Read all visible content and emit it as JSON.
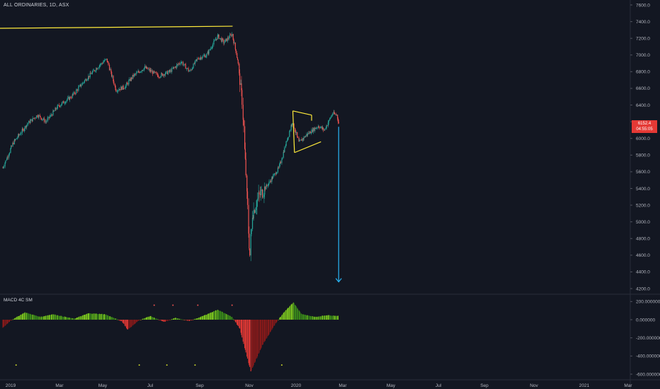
{
  "header": {
    "title": "ALL ORDINARIES, 1D, ASX"
  },
  "indicator": {
    "title": "MACD 4C SM"
  },
  "last_price": {
    "value": "6152.4",
    "countdown": "04:55:05"
  },
  "colors": {
    "background": "#131722",
    "up": "#26a69a",
    "down": "#ef5350",
    "annotation_line": "#ffeb3b",
    "arrow": "#29b6f6",
    "hist_pos": "#7cc81f",
    "hist_pos_dark": "#3a8a1a",
    "hist_neg": "#e53935",
    "hist_neg_dark": "#8b1a1a"
  },
  "chart_data": [
    {
      "type": "candlestick",
      "title": "ALL ORDINARIES, 1D, ASX",
      "y_ticks": [
        "7600.0",
        "7400.0",
        "7200.0",
        "7000.0",
        "6800.0",
        "6600.0",
        "6400.0",
        "6200.0",
        "6000.0",
        "5800.0",
        "5600.0",
        "5400.0",
        "5200.0",
        "5000.0",
        "4800.0",
        "4600.0",
        "4400.0",
        "4200.0"
      ],
      "ylim": [
        4150,
        7650
      ],
      "x_ticks": [
        "2019",
        "Mar",
        "May",
        "Jul",
        "Sep",
        "Nov",
        "2020",
        "Mar",
        "May",
        "Jul",
        "Sep",
        "Nov",
        "2021",
        "Mar"
      ],
      "close_anchors": [
        {
          "date": "2019-01-01",
          "close": 5650
        },
        {
          "date": "2019-01-20",
          "close": 5950
        },
        {
          "date": "2019-02-15",
          "close": 6180
        },
        {
          "date": "2019-03-05",
          "close": 6280
        },
        {
          "date": "2019-03-20",
          "close": 6200
        },
        {
          "date": "2019-04-10",
          "close": 6380
        },
        {
          "date": "2019-05-05",
          "close": 6500
        },
        {
          "date": "2019-05-30",
          "close": 6700
        },
        {
          "date": "2019-06-25",
          "close": 6880
        },
        {
          "date": "2019-07-08",
          "close": 6950
        },
        {
          "date": "2019-07-25",
          "close": 6580
        },
        {
          "date": "2019-08-10",
          "close": 6620
        },
        {
          "date": "2019-08-25",
          "close": 6750
        },
        {
          "date": "2019-09-15",
          "close": 6850
        },
        {
          "date": "2019-10-10",
          "close": 6750
        },
        {
          "date": "2019-10-30",
          "close": 6800
        },
        {
          "date": "2019-11-20",
          "close": 6920
        },
        {
          "date": "2019-12-05",
          "close": 6800
        },
        {
          "date": "2019-12-20",
          "close": 6960
        },
        {
          "date": "2020-01-05",
          "close": 7000
        },
        {
          "date": "2020-01-25",
          "close": 7230
        },
        {
          "date": "2020-02-05",
          "close": 7150
        },
        {
          "date": "2020-02-20",
          "close": 7250
        },
        {
          "date": "2020-03-01",
          "close": 6950
        },
        {
          "date": "2020-03-10",
          "close": 6400
        },
        {
          "date": "2020-03-18",
          "close": 5300
        },
        {
          "date": "2020-03-23",
          "close": 4600
        },
        {
          "date": "2020-03-28",
          "close": 5100
        },
        {
          "date": "2020-04-08",
          "close": 5300
        },
        {
          "date": "2020-04-25",
          "close": 5450
        },
        {
          "date": "2020-05-15",
          "close": 5650
        },
        {
          "date": "2020-06-08",
          "close": 6200
        },
        {
          "date": "2020-06-20",
          "close": 5950
        },
        {
          "date": "2020-07-05",
          "close": 6050
        },
        {
          "date": "2020-07-25",
          "close": 6150
        },
        {
          "date": "2020-08-05",
          "close": 6100
        },
        {
          "date": "2020-08-20",
          "close": 6300
        },
        {
          "date": "2020-08-28",
          "close": 6280
        },
        {
          "date": "2020-09-01",
          "close": 6150
        }
      ]
    },
    {
      "type": "histogram",
      "title": "MACD 4C SM",
      "y_ticks": [
        "200.000000",
        "0.000000",
        "-200.000000",
        "-400.000000",
        "-600.000000"
      ],
      "ylim": [
        -650,
        260
      ],
      "value_anchors": [
        {
          "date": "2019-01-01",
          "value": -90
        },
        {
          "date": "2019-01-15",
          "value": -10
        },
        {
          "date": "2019-02-10",
          "value": 80
        },
        {
          "date": "2019-03-10",
          "value": 30
        },
        {
          "date": "2019-04-01",
          "value": 60
        },
        {
          "date": "2019-05-10",
          "value": 10
        },
        {
          "date": "2019-06-05",
          "value": 70
        },
        {
          "date": "2019-07-05",
          "value": 60
        },
        {
          "date": "2019-08-05",
          "value": -20
        },
        {
          "date": "2019-08-15",
          "value": -110
        },
        {
          "date": "2019-09-05",
          "value": -5
        },
        {
          "date": "2019-09-25",
          "value": 40
        },
        {
          "date": "2019-10-20",
          "value": -25
        },
        {
          "date": "2019-11-10",
          "value": 20
        },
        {
          "date": "2019-12-05",
          "value": -15
        },
        {
          "date": "2019-12-25",
          "value": 30
        },
        {
          "date": "2020-01-25",
          "value": 110
        },
        {
          "date": "2020-02-20",
          "value": 30
        },
        {
          "date": "2020-03-05",
          "value": -100
        },
        {
          "date": "2020-03-25",
          "value": -570
        },
        {
          "date": "2020-04-15",
          "value": -280
        },
        {
          "date": "2020-05-10",
          "value": -30
        },
        {
          "date": "2020-05-25",
          "value": 90
        },
        {
          "date": "2020-06-10",
          "value": 190
        },
        {
          "date": "2020-06-25",
          "value": 60
        },
        {
          "date": "2020-07-20",
          "value": 30
        },
        {
          "date": "2020-08-10",
          "value": 50
        },
        {
          "date": "2020-08-31",
          "value": 40
        }
      ]
    }
  ],
  "annotations": {
    "trend_line": {
      "start": {
        "date": "2018-12-20",
        "price": 7320
      },
      "end": {
        "date": "2020-02-21",
        "price": 7345
      }
    },
    "triangle": {
      "top": [
        {
          "date": "2020-06-09",
          "price": 6330
        },
        {
          "date": "2020-07-13",
          "price": 6280
        }
      ],
      "bottom": [
        {
          "date": "2020-06-12",
          "price": 5830
        },
        {
          "date": "2020-07-30",
          "price": 5960
        }
      ]
    },
    "target_arrow": {
      "date": "2020-08-31",
      "from_price": 6140,
      "to_price": 4280
    }
  }
}
